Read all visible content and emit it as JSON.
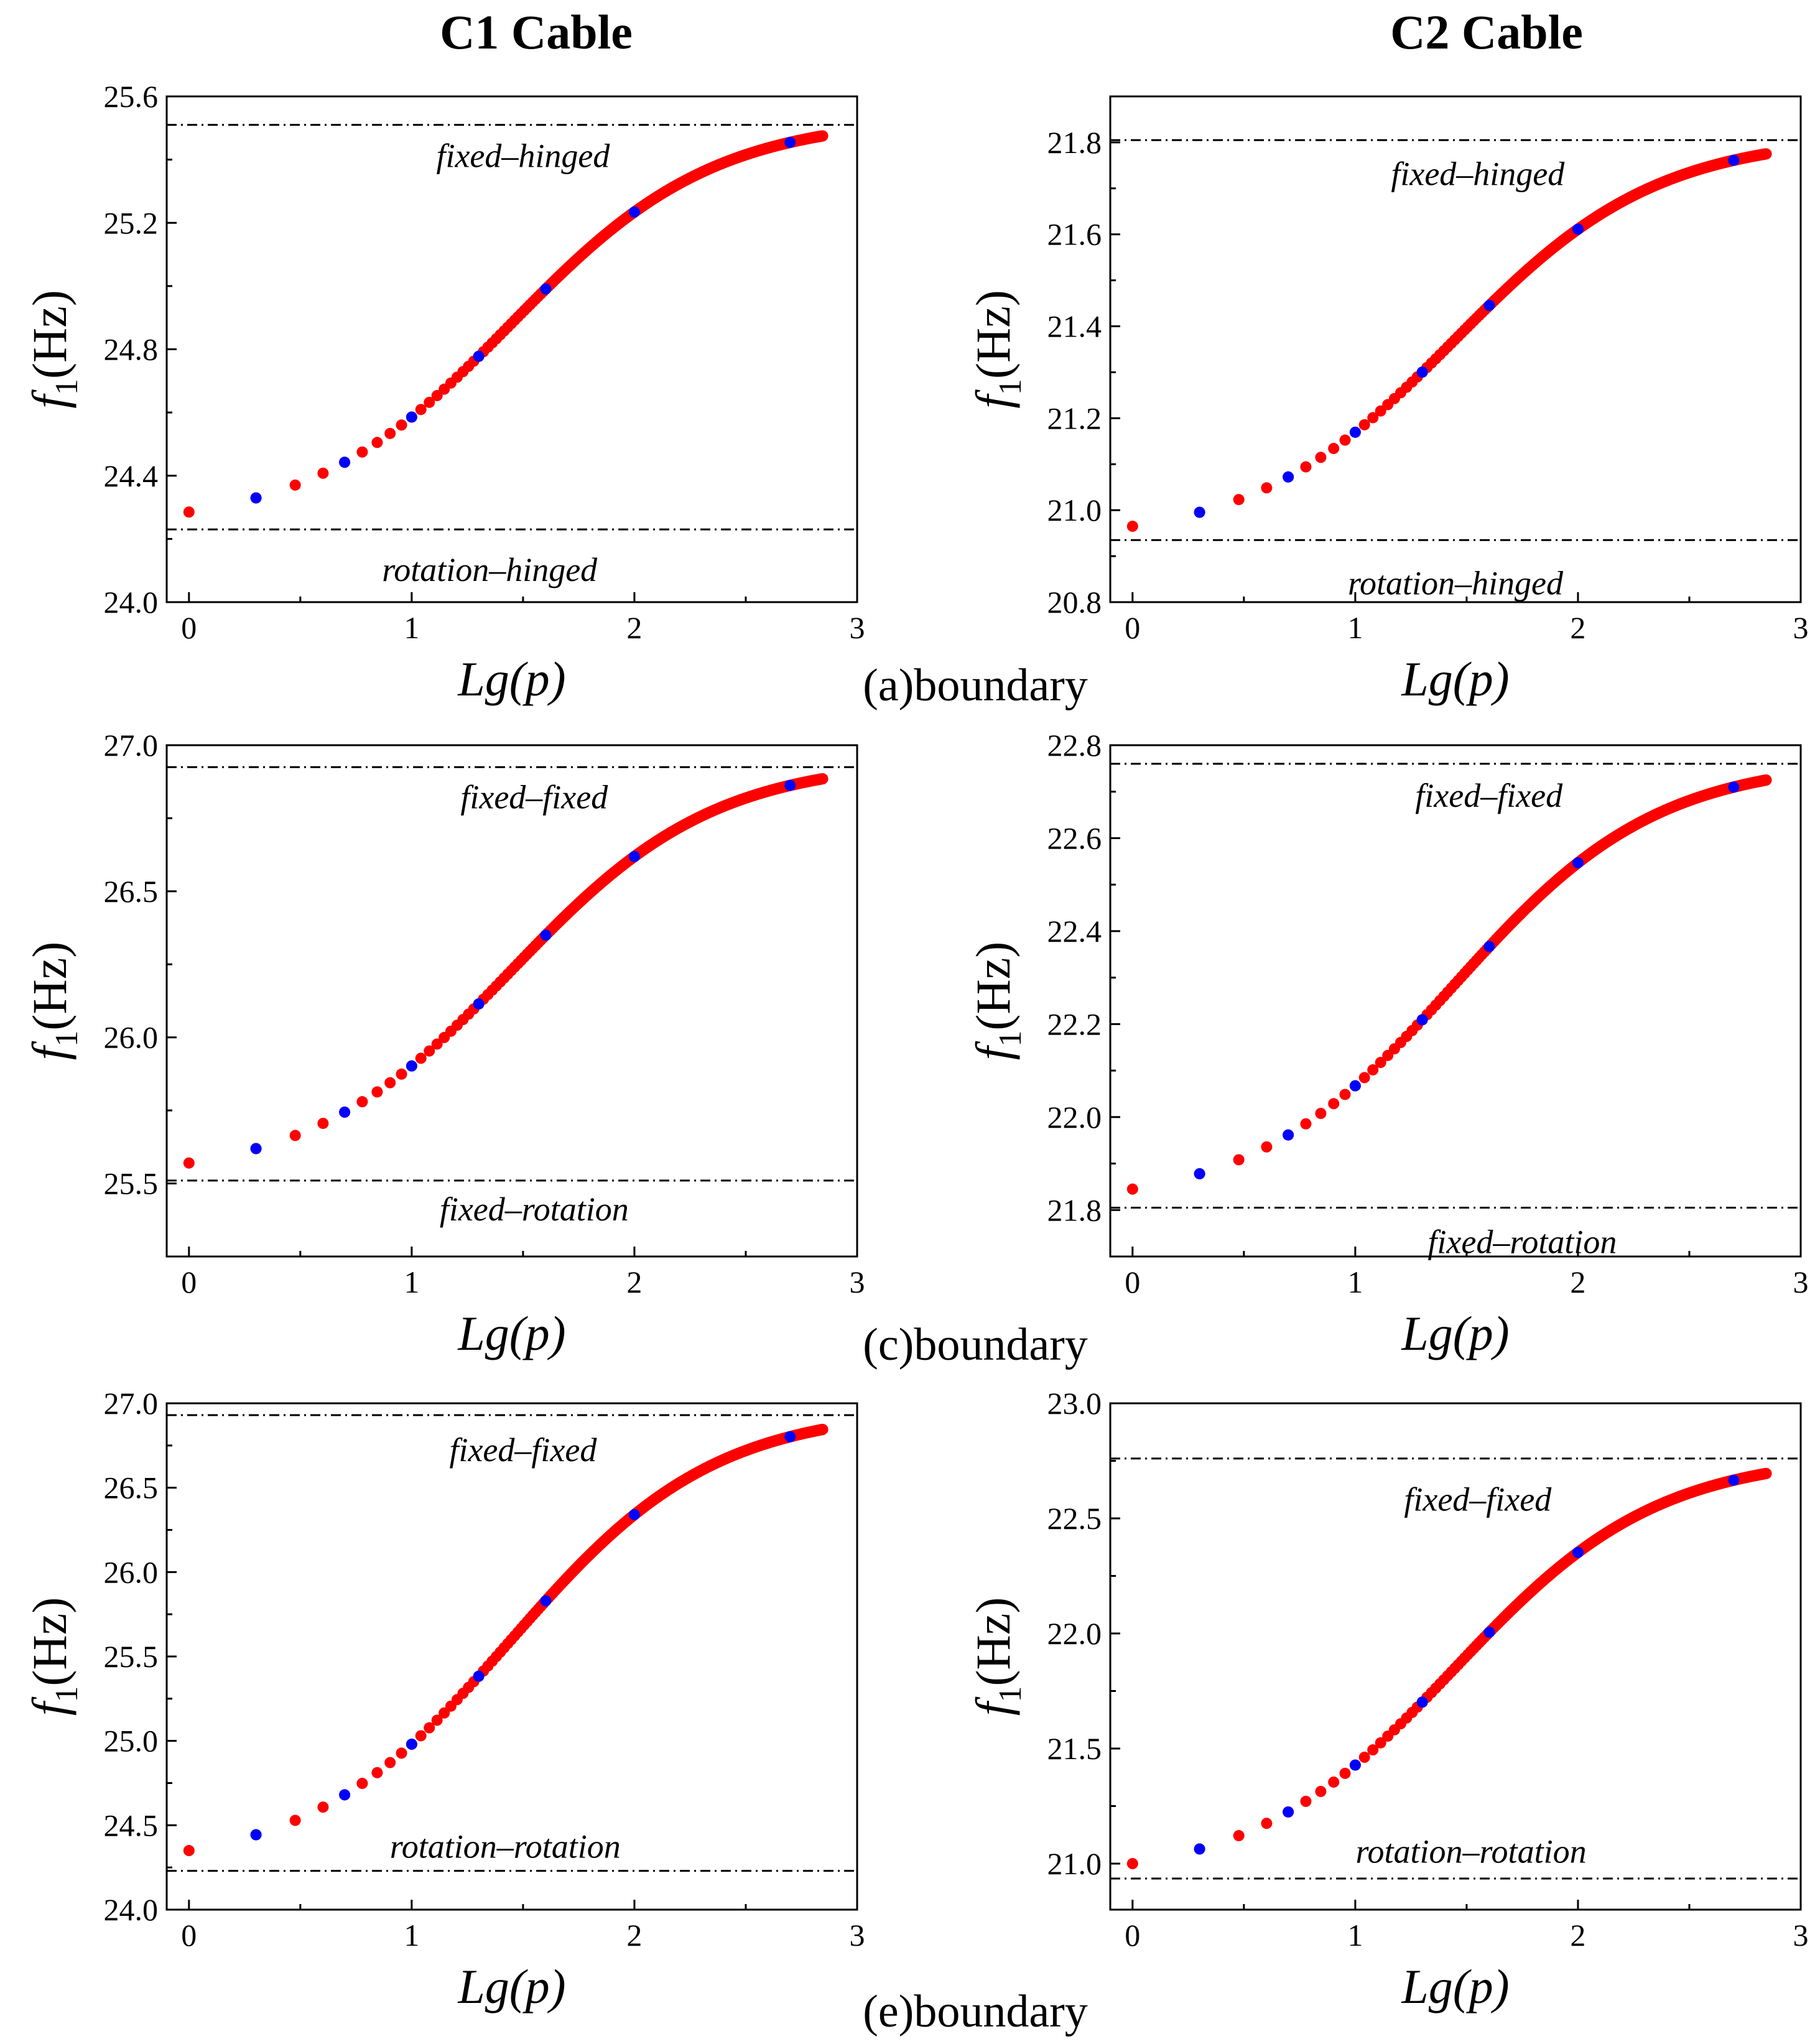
{
  "column_titles": [
    "C1 Cable",
    "C2 Cable"
  ],
  "row_captions": [
    "(a)boundary",
    "(c)boundary",
    "(e)boundary"
  ],
  "colors": {
    "red": "#ff0000",
    "blue": "#0000ff",
    "line": "#000000"
  },
  "chart_data": [
    {
      "id": "a-c1",
      "type": "scatter",
      "cable": "C1 Cable",
      "xlabel": "Lg(p)",
      "ylabel_f": "f",
      "ylabel_sub": "1",
      "ylabel_unit": "(Hz)",
      "xlim": [
        -0.1,
        3.0
      ],
      "xticks": [
        0,
        1,
        2,
        3
      ],
      "ylim": [
        24.0,
        25.6
      ],
      "yticks": [
        "24.0",
        "24.4",
        "24.8",
        "25.2",
        "25.6"
      ],
      "y_start": 24.285,
      "y_end": 25.475,
      "upper": {
        "value": 25.51,
        "label": "fixed–hinged",
        "label_x": 1.5,
        "label_y": 25.41
      },
      "lower": {
        "value": 24.23,
        "label": "rotation–hinged",
        "label_x": 1.35,
        "label_y": 24.1
      }
    },
    {
      "id": "a-c2",
      "type": "scatter",
      "cable": "C2 Cable",
      "xlabel": "Lg(p)",
      "ylabel_f": "f",
      "ylabel_sub": "1",
      "ylabel_unit": "(Hz)",
      "xlim": [
        -0.1,
        3.0
      ],
      "xticks": [
        0,
        1,
        2,
        3
      ],
      "ylim": [
        20.8,
        21.9
      ],
      "yticks": [
        "20.8",
        "21.0",
        "21.2",
        "21.4",
        "21.6",
        "21.8"
      ],
      "y_start": 20.965,
      "y_end": 21.775,
      "upper": {
        "value": 21.805,
        "label": "fixed–hinged",
        "label_x": 1.55,
        "label_y": 21.73
      },
      "lower": {
        "value": 20.935,
        "label": "rotation–hinged",
        "label_x": 1.45,
        "label_y": 20.84
      }
    },
    {
      "id": "c-c1",
      "type": "scatter",
      "cable": "C1 Cable",
      "xlabel": "Lg(p)",
      "ylabel_f": "f",
      "ylabel_sub": "1",
      "ylabel_unit": "(Hz)",
      "xlim": [
        -0.1,
        3.0
      ],
      "xticks": [
        0,
        1,
        2,
        3
      ],
      "ylim": [
        25.25,
        27.0
      ],
      "yticks": [
        "25.5",
        "26.0",
        "26.5",
        "27.0"
      ],
      "y_start": 25.57,
      "y_end": 26.885,
      "upper": {
        "value": 26.925,
        "label": "fixed–fixed",
        "label_x": 1.55,
        "label_y": 26.82
      },
      "lower": {
        "value": 25.51,
        "label": "fixed–rotation",
        "label_x": 1.55,
        "label_y": 25.41
      }
    },
    {
      "id": "c-c2",
      "type": "scatter",
      "cable": "C2 Cable",
      "xlabel": "Lg(p)",
      "ylabel_f": "f",
      "ylabel_sub": "1",
      "ylabel_unit": "(Hz)",
      "xlim": [
        -0.1,
        3.0
      ],
      "xticks": [
        0,
        1,
        2,
        3
      ],
      "ylim": [
        21.7,
        22.8
      ],
      "yticks": [
        "21.8",
        "22.0",
        "22.2",
        "22.4",
        "22.6",
        "22.8"
      ],
      "y_start": 21.845,
      "y_end": 22.725,
      "upper": {
        "value": 22.76,
        "label": "fixed–fixed",
        "label_x": 1.6,
        "label_y": 22.69
      },
      "lower": {
        "value": 21.805,
        "label": "fixed–rotation",
        "label_x": 1.75,
        "label_y": 21.73
      }
    },
    {
      "id": "e-c1",
      "type": "scatter",
      "cable": "C1 Cable",
      "xlabel": "Lg(p)",
      "ylabel_f": "f",
      "ylabel_sub": "1",
      "ylabel_unit": "(Hz)",
      "xlim": [
        -0.1,
        3.0
      ],
      "xticks": [
        0,
        1,
        2,
        3
      ],
      "ylim": [
        24.0,
        27.0
      ],
      "yticks": [
        "24.0",
        "24.5",
        "25.0",
        "25.5",
        "26.0",
        "26.5",
        "27.0"
      ],
      "y_start": 24.35,
      "y_end": 26.845,
      "upper": {
        "value": 26.93,
        "label": "fixed–fixed",
        "label_x": 1.5,
        "label_y": 26.72
      },
      "lower": {
        "value": 24.23,
        "label": "rotation–rotation",
        "label_x": 1.42,
        "label_y": 24.37
      }
    },
    {
      "id": "e-c2",
      "type": "scatter",
      "cable": "C2 Cable",
      "xlabel": "Lg(p)",
      "ylabel_f": "f",
      "ylabel_sub": "1",
      "ylabel_unit": "(Hz)",
      "xlim": [
        -0.1,
        3.0
      ],
      "xticks": [
        0,
        1,
        2,
        3
      ],
      "ylim": [
        20.8,
        23.0
      ],
      "yticks": [
        "21.0",
        "21.5",
        "22.0",
        "22.5",
        "23.0"
      ],
      "y_start": 21.0,
      "y_end": 22.695,
      "upper": {
        "value": 22.76,
        "label": "fixed–fixed",
        "label_x": 1.55,
        "label_y": 22.58
      },
      "lower": {
        "value": 20.935,
        "label": "rotation–rotation",
        "label_x": 1.52,
        "label_y": 21.05
      }
    }
  ]
}
